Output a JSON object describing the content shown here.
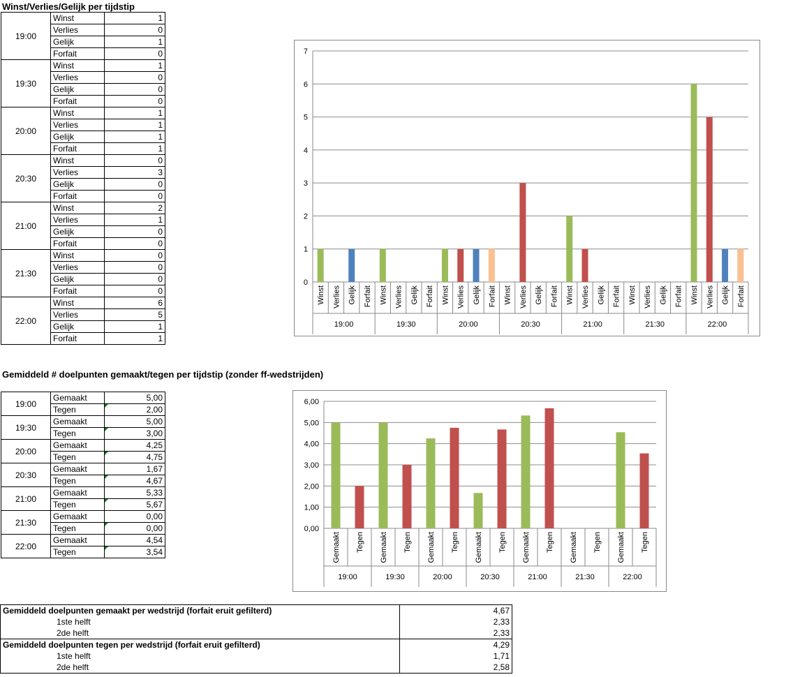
{
  "table1": {
    "title": "Winst/Verlies/Gelijk per tijdstip",
    "groups": [
      {
        "time": "19:00",
        "rows": [
          [
            "Winst",
            "1"
          ],
          [
            "Verlies",
            "0"
          ],
          [
            "Gelijk",
            "1"
          ],
          [
            "Forfait",
            "0"
          ]
        ]
      },
      {
        "time": "19:30",
        "rows": [
          [
            "Winst",
            "1"
          ],
          [
            "Verlies",
            "0"
          ],
          [
            "Gelijk",
            "0"
          ],
          [
            "Forfait",
            "0"
          ]
        ]
      },
      {
        "time": "20:00",
        "rows": [
          [
            "Winst",
            "1"
          ],
          [
            "Verlies",
            "1"
          ],
          [
            "Gelijk",
            "1"
          ],
          [
            "Forfait",
            "1"
          ]
        ]
      },
      {
        "time": "20:30",
        "rows": [
          [
            "Winst",
            "0"
          ],
          [
            "Verlies",
            "3"
          ],
          [
            "Gelijk",
            "0"
          ],
          [
            "Forfait",
            "0"
          ]
        ]
      },
      {
        "time": "21:00",
        "rows": [
          [
            "Winst",
            "2"
          ],
          [
            "Verlies",
            "1"
          ],
          [
            "Gelijk",
            "0"
          ],
          [
            "Forfait",
            "0"
          ]
        ]
      },
      {
        "time": "21:30",
        "rows": [
          [
            "Winst",
            "0"
          ],
          [
            "Verlies",
            "0"
          ],
          [
            "Gelijk",
            "0"
          ],
          [
            "Forfait",
            "0"
          ]
        ]
      },
      {
        "time": "22:00",
        "rows": [
          [
            "Winst",
            "6"
          ],
          [
            "Verlies",
            "5"
          ],
          [
            "Gelijk",
            "1"
          ],
          [
            "Forfait",
            "1"
          ]
        ]
      }
    ]
  },
  "table2": {
    "title": "Gemiddeld # doelpunten gemaakt/tegen per tijdstip (zonder ff-wedstrijden)",
    "groups": [
      {
        "time": "19:00",
        "rows": [
          [
            "Gemaakt",
            "5,00"
          ],
          [
            "Tegen",
            "2,00"
          ]
        ]
      },
      {
        "time": "19:30",
        "rows": [
          [
            "Gemaakt",
            "5,00"
          ],
          [
            "Tegen",
            "3,00"
          ]
        ]
      },
      {
        "time": "20:00",
        "rows": [
          [
            "Gemaakt",
            "4,25"
          ],
          [
            "Tegen",
            "4,75"
          ]
        ]
      },
      {
        "time": "20:30",
        "rows": [
          [
            "Gemaakt",
            "1,67"
          ],
          [
            "Tegen",
            "4,67"
          ]
        ]
      },
      {
        "time": "21:00",
        "rows": [
          [
            "Gemaakt",
            "5,33"
          ],
          [
            "Tegen",
            "5,67"
          ]
        ]
      },
      {
        "time": "21:30",
        "rows": [
          [
            "Gemaakt",
            "0,00"
          ],
          [
            "Tegen",
            "0,00"
          ]
        ]
      },
      {
        "time": "22:00",
        "rows": [
          [
            "Gemaakt",
            "4,54"
          ],
          [
            "Tegen",
            "3,54"
          ]
        ]
      }
    ]
  },
  "summary": {
    "made_label": "Gemiddeld doelpunten gemaakt per wedstrijd (forfait eruit gefilterd)",
    "made_value": "4,67",
    "made_h1_label": "1ste helft",
    "made_h1_value": "2,33",
    "made_h2_label": "2de helft",
    "made_h2_value": "2,33",
    "against_label": "Gemiddeld doelpunten tegen per wedstrijd (forfait eruit gefilterd)",
    "against_value": "4,29",
    "against_h1_label": "1ste helft",
    "against_h1_value": "1,71",
    "against_h2_label": "2de helft",
    "against_h2_value": "2,58"
  },
  "chart_data": [
    {
      "type": "bar",
      "title": "",
      "groups": [
        "19:00",
        "19:30",
        "20:00",
        "20:30",
        "21:00",
        "21:30",
        "22:00"
      ],
      "categories": [
        "Winst",
        "Verlies",
        "Gelijk",
        "Forfait"
      ],
      "category_colors": [
        "#9bbb59",
        "#c0504d",
        "#4f81bd",
        "#fac090"
      ],
      "values": [
        [
          1,
          0,
          1,
          0
        ],
        [
          1,
          0,
          0,
          0
        ],
        [
          1,
          1,
          1,
          1
        ],
        [
          0,
          3,
          0,
          0
        ],
        [
          2,
          1,
          0,
          0
        ],
        [
          0,
          0,
          0,
          0
        ],
        [
          6,
          5,
          1,
          1
        ]
      ],
      "ylim": [
        0,
        7
      ],
      "yticks": [
        "0",
        "1",
        "2",
        "3",
        "4",
        "5",
        "6",
        "7"
      ],
      "grid": true,
      "legend": "none"
    },
    {
      "type": "bar",
      "title": "",
      "groups": [
        "19:00",
        "19:30",
        "20:00",
        "20:30",
        "21:00",
        "21:30",
        "22:00"
      ],
      "categories": [
        "Gemaakt",
        "Tegen"
      ],
      "category_colors": [
        "#9bbb59",
        "#c0504d"
      ],
      "values": [
        [
          5.0,
          2.0
        ],
        [
          5.0,
          3.0
        ],
        [
          4.25,
          4.75
        ],
        [
          1.67,
          4.67
        ],
        [
          5.33,
          5.67
        ],
        [
          0,
          0
        ],
        [
          4.54,
          3.54
        ]
      ],
      "ylim": [
        0,
        6
      ],
      "yticks": [
        "0,00",
        "1,00",
        "2,00",
        "3,00",
        "4,00",
        "5,00",
        "6,00"
      ],
      "grid": true,
      "legend": "none"
    }
  ]
}
